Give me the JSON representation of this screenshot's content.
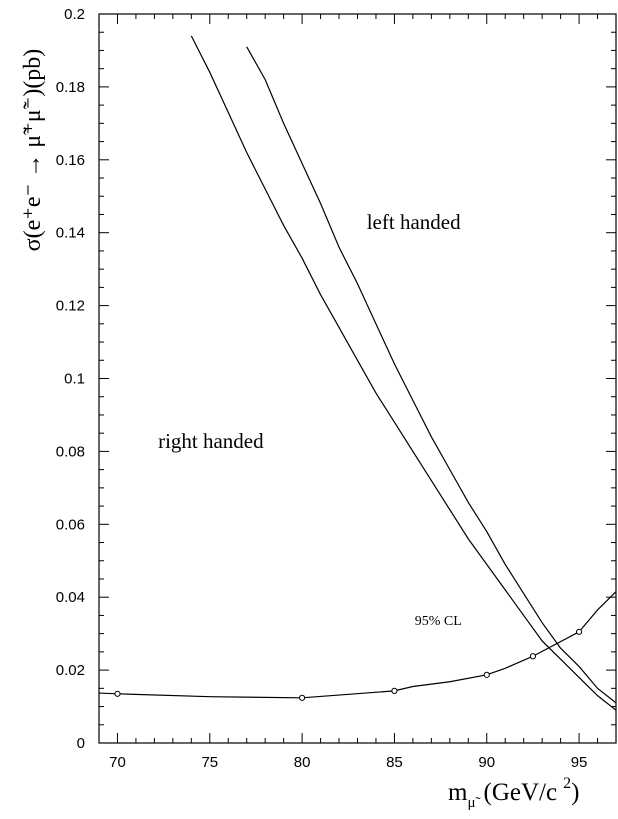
{
  "chart_data": {
    "type": "line",
    "title": "",
    "xlabel": "m",
    "xlabel_sub": "μ̃",
    "xlabel_units": "(GeV/c",
    "xlabel_units_sup": "2",
    "xlabel_units_close": ")",
    "ylabel": "σ(e⁺e⁻ → μ̃⁺μ̃⁻)(pb)",
    "xlim": [
      69,
      97
    ],
    "ylim": [
      0,
      0.2
    ],
    "x_ticks": [
      70,
      75,
      80,
      85,
      90,
      95
    ],
    "x_tick_labels": [
      "70",
      "75",
      "80",
      "85",
      "90",
      "95"
    ],
    "y_ticks": [
      0,
      0.02,
      0.04,
      0.06,
      0.08,
      0.1,
      0.12,
      0.14,
      0.16,
      0.18,
      0.2
    ],
    "y_tick_labels": [
      "0",
      "0.02",
      "0.04",
      "0.06",
      "0.08",
      "0.1",
      "0.12",
      "0.14",
      "0.16",
      "0.18",
      "0.2"
    ],
    "grid": false,
    "series": [
      {
        "name": "left handed",
        "style": "line",
        "x": [
          77,
          78,
          79,
          80,
          81,
          82,
          83,
          84,
          85,
          86,
          87,
          88,
          89,
          90,
          91,
          92,
          93,
          94,
          95,
          96,
          97
        ],
        "y": [
          0.191,
          0.182,
          0.17,
          0.159,
          0.148,
          0.136,
          0.126,
          0.115,
          0.104,
          0.094,
          0.084,
          0.075,
          0.066,
          0.058,
          0.049,
          0.041,
          0.033,
          0.026,
          0.021,
          0.015,
          0.011
        ]
      },
      {
        "name": "right handed",
        "style": "line",
        "x": [
          74,
          75,
          76,
          77,
          78,
          79,
          80,
          81,
          82,
          83,
          84,
          85,
          86,
          87,
          88,
          89,
          90,
          91,
          92,
          93,
          94,
          95,
          96,
          97
        ],
        "y": [
          0.194,
          0.184,
          0.173,
          0.162,
          0.152,
          0.142,
          0.133,
          0.123,
          0.114,
          0.105,
          0.096,
          0.088,
          0.08,
          0.072,
          0.064,
          0.056,
          0.049,
          0.042,
          0.035,
          0.028,
          0.023,
          0.018,
          0.013,
          0.009
        ]
      },
      {
        "name": "95% CL",
        "style": "line-markers",
        "x": [
          69,
          70,
          75,
          80,
          85,
          86,
          88,
          90,
          91,
          92.5,
          95,
          96,
          97
        ],
        "y": [
          0.0137,
          0.0135,
          0.0127,
          0.0124,
          0.0143,
          0.0155,
          0.0168,
          0.0187,
          0.0205,
          0.0238,
          0.0305,
          0.0365,
          0.0415
        ],
        "markers_x": [
          70,
          80,
          85,
          90,
          92.5,
          95
        ],
        "markers_y": [
          0.0135,
          0.0124,
          0.0143,
          0.0187,
          0.0238,
          0.0305
        ]
      }
    ],
    "annotations": [
      {
        "text": "left handed",
        "x": 83.5,
        "y": 0.141,
        "size": "large"
      },
      {
        "text": "right handed",
        "x": 72.2,
        "y": 0.081,
        "size": "large"
      },
      {
        "text": "95% CL",
        "x": 86.1,
        "y": 0.0324,
        "size": "small"
      }
    ]
  }
}
